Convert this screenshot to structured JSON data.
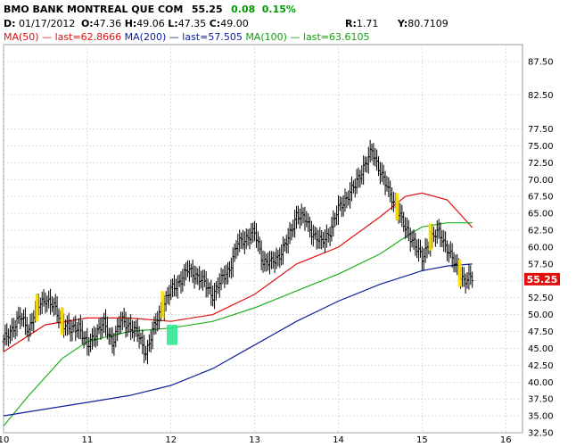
{
  "header": {
    "title": "BMO BANK MONTREAL QUE COM",
    "last_price": "55.25",
    "change": "0.08",
    "change_pct": "0.15%",
    "date_label": "D:",
    "date": "01/17/2012",
    "open_label": "O:",
    "open": "47.36",
    "high_label": "H:",
    "high": "49.06",
    "low_label": "L:",
    "low": "47.35",
    "close_label": "C:",
    "close": "49.00",
    "r_label": "R:",
    "r_value": "1.71",
    "y_label": "Y:",
    "y_value": "80.7109",
    "ma50_text": "MA(50)",
    "ma50_last": "last=62.8666",
    "ma200_text": "MA(200)",
    "ma200_last": "last=57.505",
    "ma100_text": "MA(100)",
    "ma100_last": "last=63.6105"
  },
  "price_flag": "55.25",
  "colors": {
    "ma50": "#e01010",
    "ma200": "#10209a",
    "ma100": "#20b020",
    "up_text": "#009900",
    "price_flag": "#e01010",
    "highlight_yellow": "#ffe000",
    "highlight_green": "#30e890",
    "bars": "#000000",
    "grid": "#c8c8c8"
  },
  "chart_data": {
    "type": "line",
    "subtype": "ohlc_bar_with_moving_averages",
    "title": "BMO BANK MONTREAL QUE COM",
    "x_ticks": [
      "10",
      "11",
      "12",
      "13",
      "14",
      "15",
      "16"
    ],
    "x_tick_positions": [
      10,
      11,
      12,
      13,
      14,
      15,
      16
    ],
    "xlim": [
      10,
      16.2
    ],
    "y_ticks": [
      "32.50",
      "35.00",
      "37.50",
      "40.00",
      "42.50",
      "45.00",
      "47.50",
      "50.00",
      "52.50",
      "55.00",
      "57.50",
      "60.00",
      "62.50",
      "65.00",
      "67.50",
      "70.00",
      "72.50",
      "75.00",
      "77.50",
      "82.50",
      "87.50"
    ],
    "y_tick_values": [
      32.5,
      35,
      37.5,
      40,
      42.5,
      45,
      47.5,
      50,
      52.5,
      55,
      57.5,
      60,
      62.5,
      65,
      67.5,
      70,
      72.5,
      75,
      77.5,
      82.5,
      87.5
    ],
    "ylim": [
      32.5,
      90
    ],
    "grid": true,
    "price_series": {
      "name": "BMO",
      "x": [
        10.0,
        10.1,
        10.2,
        10.3,
        10.4,
        10.5,
        10.6,
        10.7,
        10.8,
        10.9,
        11.0,
        11.1,
        11.2,
        11.3,
        11.4,
        11.5,
        11.6,
        11.7,
        11.8,
        11.9,
        12.0,
        12.1,
        12.2,
        12.3,
        12.4,
        12.5,
        12.6,
        12.7,
        12.8,
        12.9,
        13.0,
        13.1,
        13.2,
        13.3,
        13.4,
        13.5,
        13.6,
        13.7,
        13.8,
        13.9,
        14.0,
        14.1,
        14.2,
        14.3,
        14.4,
        14.5,
        14.6,
        14.7,
        14.8,
        14.9,
        15.0,
        15.1,
        15.2,
        15.3,
        15.4,
        15.5,
        15.6
      ],
      "close": [
        46.0,
        48.0,
        49.5,
        48.0,
        51.0,
        52.5,
        51.0,
        49.0,
        47.5,
        48.5,
        45.0,
        47.5,
        48.5,
        46.0,
        49.0,
        48.5,
        47.0,
        44.5,
        48.0,
        51.5,
        53.5,
        55.0,
        56.5,
        56.0,
        54.5,
        53.0,
        55.0,
        57.0,
        60.5,
        61.5,
        62.0,
        58.0,
        57.5,
        59.0,
        61.0,
        65.0,
        64.0,
        62.0,
        60.5,
        62.5,
        65.5,
        67.5,
        69.0,
        72.0,
        74.0,
        71.5,
        68.0,
        66.0,
        62.5,
        61.0,
        58.0,
        61.5,
        62.0,
        60.0,
        57.0,
        55.25,
        55.25
      ]
    },
    "series": [
      {
        "name": "MA(50)",
        "x": [
          10.0,
          10.5,
          11.0,
          11.5,
          12.0,
          12.5,
          13.0,
          13.5,
          14.0,
          14.5,
          14.8,
          15.0,
          15.3,
          15.6
        ],
        "values": [
          44.5,
          48.5,
          49.5,
          49.5,
          49.0,
          50.0,
          53.0,
          57.5,
          60.0,
          64.5,
          67.5,
          68.0,
          67.0,
          62.9
        ]
      },
      {
        "name": "MA(100)",
        "x": [
          10.0,
          10.3,
          10.7,
          11.0,
          11.5,
          12.0,
          12.5,
          13.0,
          13.5,
          14.0,
          14.5,
          14.8,
          15.0,
          15.3,
          15.6
        ],
        "values": [
          33.5,
          38.0,
          43.5,
          46.0,
          47.5,
          48.0,
          49.0,
          51.0,
          53.5,
          56.0,
          59.0,
          61.5,
          63.0,
          63.6,
          63.6
        ]
      },
      {
        "name": "MA(200)",
        "x": [
          10.0,
          10.5,
          11.0,
          11.5,
          12.0,
          12.5,
          13.0,
          13.5,
          14.0,
          14.5,
          15.0,
          15.3,
          15.6
        ],
        "values": [
          35.0,
          36.0,
          37.0,
          38.0,
          39.5,
          42.0,
          45.5,
          49.0,
          52.0,
          54.5,
          56.5,
          57.2,
          57.5
        ]
      }
    ]
  }
}
